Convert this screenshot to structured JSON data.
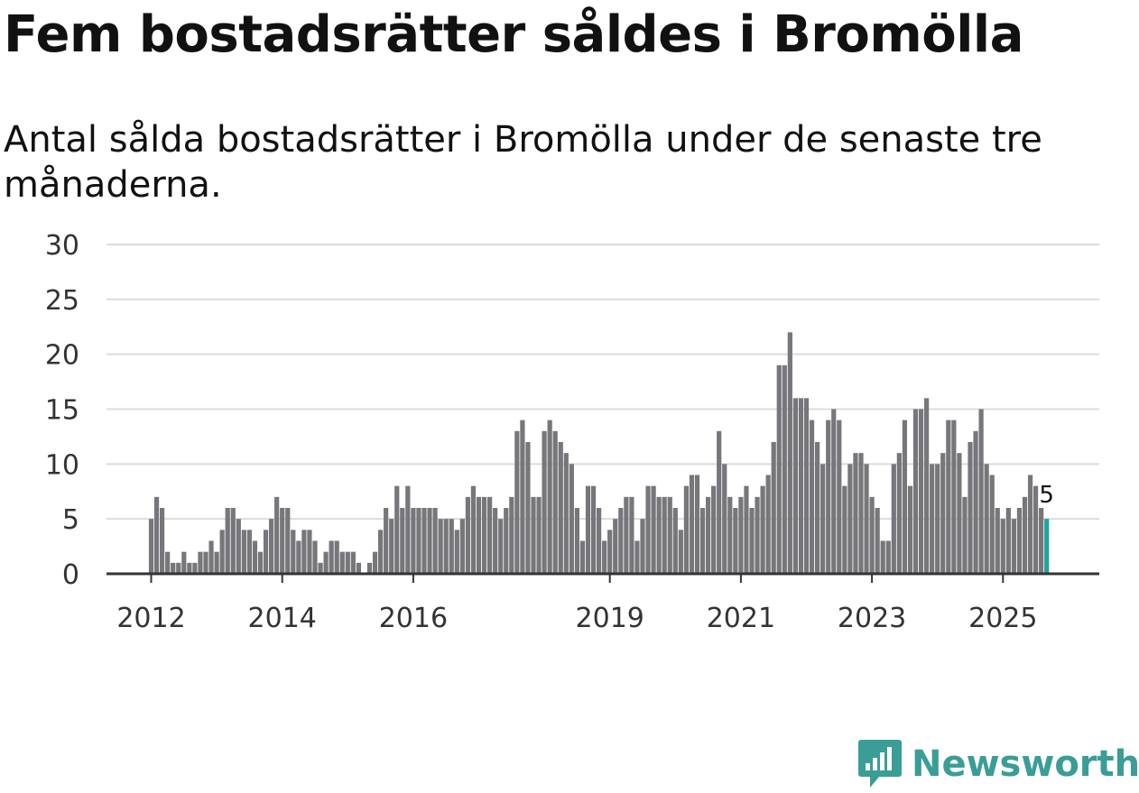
{
  "title": "Fem bostadsrätter såldes i Bromölla",
  "subtitle": "Antal sålda bostadsrätter i Bromölla under de senaste tre månaderna.",
  "brand": {
    "name": "Newsworthy",
    "color": "#3a9d96"
  },
  "colors": {
    "bar": "#76767b",
    "highlight": "#1fa39a",
    "grid": "#dcdcdc",
    "axis": "#333333"
  },
  "chart_data": {
    "type": "bar",
    "title": "Fem bostadsrätter såldes i Bromölla",
    "xlabel": "",
    "ylabel": "",
    "ylim": [
      0,
      30
    ],
    "yticks": [
      0,
      5,
      10,
      15,
      20,
      25,
      30
    ],
    "x_start": "2012-01",
    "xtick_labels": [
      {
        "label": "2012",
        "index": 0
      },
      {
        "label": "2014",
        "index": 24
      },
      {
        "label": "2016",
        "index": 48
      },
      {
        "label": "2019",
        "index": 84
      },
      {
        "label": "2021",
        "index": 108
      },
      {
        "label": "2023",
        "index": 132
      },
      {
        "label": "2025",
        "index": 156
      }
    ],
    "values": [
      5,
      7,
      6,
      2,
      1,
      1,
      2,
      1,
      1,
      2,
      2,
      3,
      2,
      4,
      6,
      6,
      5,
      4,
      4,
      3,
      2,
      4,
      5,
      7,
      6,
      6,
      4,
      3,
      4,
      4,
      3,
      1,
      2,
      3,
      3,
      2,
      2,
      2,
      1,
      0,
      1,
      2,
      4,
      6,
      5,
      8,
      6,
      8,
      6,
      6,
      6,
      6,
      6,
      5,
      5,
      5,
      4,
      5,
      7,
      8,
      7,
      7,
      7,
      6,
      5,
      6,
      7,
      13,
      14,
      12,
      7,
      7,
      13,
      14,
      13,
      12,
      11,
      10,
      6,
      3,
      8,
      8,
      6,
      3,
      4,
      5,
      6,
      7,
      7,
      3,
      5,
      8,
      8,
      7,
      7,
      7,
      6,
      4,
      8,
      9,
      9,
      6,
      7,
      8,
      13,
      10,
      7,
      6,
      7,
      8,
      6,
      7,
      8,
      9,
      12,
      19,
      19,
      22,
      16,
      16,
      16,
      14,
      12,
      10,
      14,
      15,
      14,
      8,
      10,
      11,
      11,
      10,
      7,
      6,
      3,
      3,
      10,
      11,
      14,
      8,
      15,
      15,
      16,
      10,
      10,
      11,
      14,
      14,
      11,
      7,
      12,
      13,
      15,
      10,
      9,
      6,
      5,
      6,
      5,
      6,
      7,
      9,
      8,
      6,
      5
    ],
    "highlight_last": true,
    "annotation": {
      "text": "5",
      "index": 164,
      "value": 5
    }
  }
}
